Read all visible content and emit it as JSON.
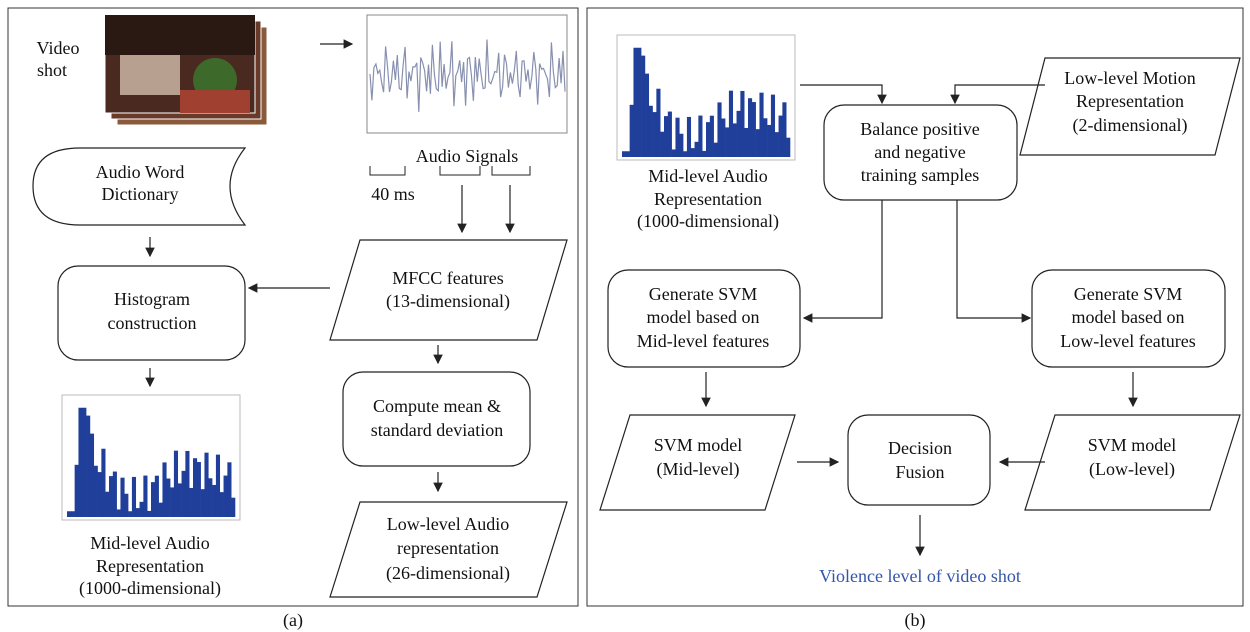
{
  "panel_a": {
    "video_label": [
      "Video",
      "shot"
    ],
    "audio_word_dictionary": [
      "Audio Word",
      "Dictionary"
    ],
    "audio_signals": "Audio Signals",
    "frame_length": "40 ms",
    "mfcc": [
      "MFCC features",
      "(13-dimensional)"
    ],
    "histogram_construction": [
      "Histogram",
      "construction"
    ],
    "compute": [
      "Compute mean &",
      "standard deviation"
    ],
    "mid_level": [
      "Mid-level Audio",
      "Representation",
      "(1000-dimensional)"
    ],
    "low_level": [
      "Low-level Audio",
      "representation",
      "(26-dimensional)"
    ],
    "caption": "(a)"
  },
  "panel_b": {
    "mid_level": [
      "Mid-level Audio",
      "Representation",
      "(1000-dimensional)"
    ],
    "low_motion": [
      "Low-level Motion",
      "Representation",
      "(2-dimensional)"
    ],
    "balance": [
      "Balance positive",
      "and negative",
      "training samples"
    ],
    "generate_mid": [
      "Generate SVM",
      "model based on",
      "Mid-level features"
    ],
    "generate_low": [
      "Generate SVM",
      "model based on",
      "Low-level features"
    ],
    "svm_mid": [
      "SVM model",
      "(Mid-level)"
    ],
    "svm_low": [
      "SVM model",
      "(Low-level)"
    ],
    "fusion": [
      "Decision",
      "Fusion"
    ],
    "output": "Violence level of video shot",
    "caption": "(b)"
  }
}
